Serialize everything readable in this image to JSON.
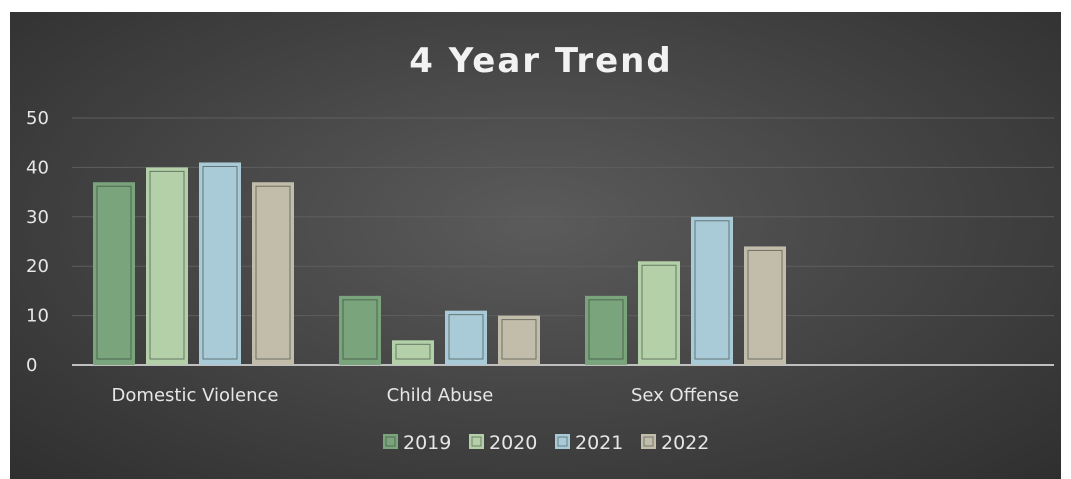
{
  "chart_data": {
    "type": "bar",
    "title": "4 Year Trend",
    "xlabel": "",
    "ylabel": "",
    "categories": [
      "Domestic Violence",
      "Child Abuse",
      "Sex Offense"
    ],
    "series": [
      {
        "name": "2019",
        "values": [
          37,
          14,
          14
        ]
      },
      {
        "name": "2020",
        "values": [
          40,
          5,
          21
        ]
      },
      {
        "name": "2021",
        "values": [
          41,
          11,
          30
        ]
      },
      {
        "name": "2022",
        "values": [
          37,
          10,
          24
        ]
      }
    ],
    "ylim": [
      0,
      50
    ],
    "yticks": [
      "0",
      "10",
      "20",
      "30",
      "40",
      "50"
    ],
    "grid": true,
    "legend_position": "bottom",
    "colors": {
      "2019": "#7aa57c",
      "2020": "#b3d0a9",
      "2021": "#a9cbd8",
      "2022": "#c2bcab",
      "background": "#474747",
      "gridline": "#5e5e5e",
      "axis": "#bfbfbf"
    }
  }
}
